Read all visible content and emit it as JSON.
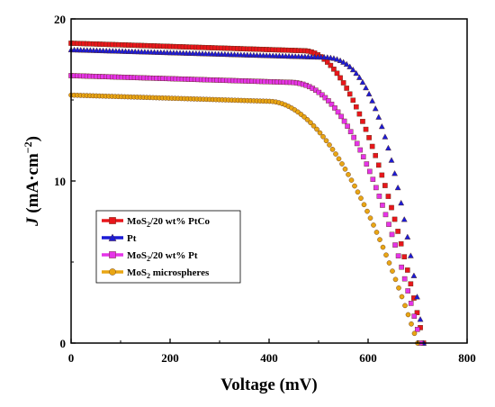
{
  "chart_data": {
    "type": "scatter",
    "xlabel": "Voltage (mV)",
    "ylabel": {
      "symbol": "J",
      "text": " (mA·cm",
      "sup": "−2",
      "close": ")"
    },
    "xlim": [
      0,
      800
    ],
    "ylim": [
      0,
      20
    ],
    "xticks": [
      "0",
      "200",
      "400",
      "600",
      "800"
    ],
    "yticks": [
      "0",
      "10",
      "20"
    ],
    "grid": false,
    "legend_position": "lower-left",
    "series": [
      {
        "name": {
          "base": "MoS",
          "sub": "2",
          "rest": "/20 wt% PtCo"
        },
        "color": "#e8161b",
        "marker": "square",
        "jsc": 18.5,
        "voc": 712,
        "knee": 470,
        "bend": 2.0
      },
      {
        "name": {
          "base": "Pt",
          "sub": "",
          "rest": ""
        },
        "color": "#1b1bd6",
        "marker": "triangle",
        "jsc": 18.1,
        "voc": 712,
        "knee": 500,
        "bend": 2.8
      },
      {
        "name": {
          "base": "MoS",
          "sub": "2",
          "rest": "/20 wt% Pt"
        },
        "color": "#e534e8",
        "marker": "square",
        "jsc": 16.5,
        "voc": 706,
        "knee": 440,
        "bend": 2.2
      },
      {
        "name": {
          "base": "MoS",
          "sub": "2",
          "rest": " microspheres"
        },
        "color": "#e9a614",
        "marker": "circle",
        "jsc": 15.3,
        "voc": 700,
        "knee": 400,
        "bend": 1.9
      }
    ],
    "colors": {
      "axis": "#000000",
      "marker_border": "#5a2d14"
    }
  }
}
